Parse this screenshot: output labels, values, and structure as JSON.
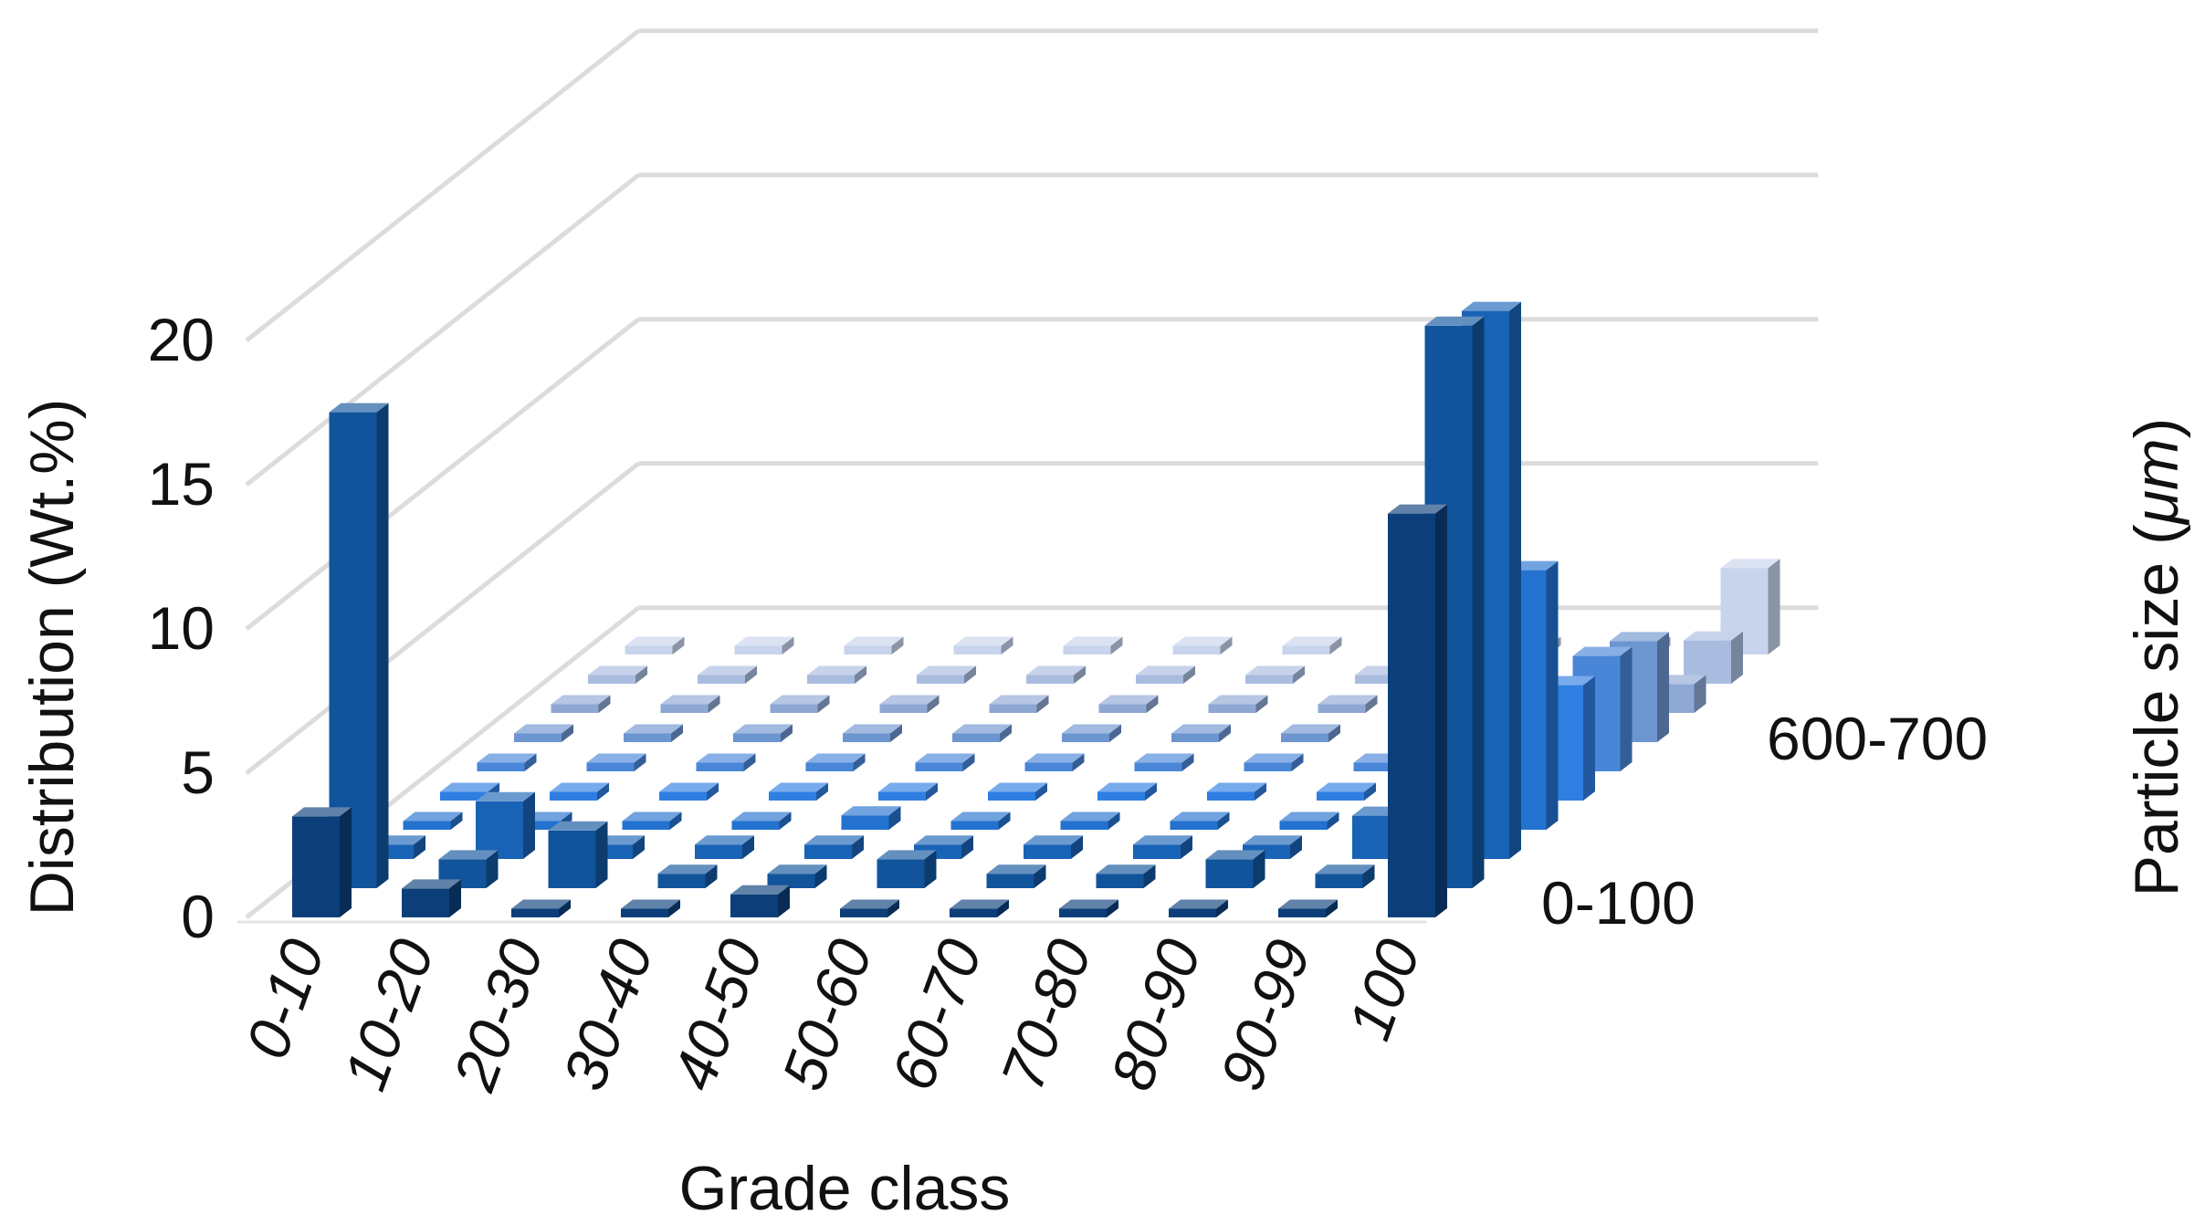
{
  "chart_data": {
    "type": "bar",
    "subtype": "3d-column",
    "title": "",
    "xlabel": "Grade class",
    "ylabel": "Distribution (Wt.%)",
    "zlabel_prefix": "Particle size (",
    "zlabel_unit": "μm",
    "zlabel_suffix": ")",
    "ylim": [
      0,
      20
    ],
    "yticks": [
      "0",
      "5",
      "10",
      "15",
      "20"
    ],
    "categories": [
      "0-10",
      "10-20",
      "20-30",
      "30-40",
      "40-50",
      "50-60",
      "60-70",
      "70-80",
      "80-90",
      "90-99",
      "100"
    ],
    "series_tick_labels": {
      "first": "0-100",
      "last": "600-700"
    },
    "grid": true,
    "series": [
      {
        "values": [
          3.5,
          1.0,
          0.3,
          0.3,
          0.8,
          0.3,
          0.3,
          0.3,
          0.3,
          0.3,
          14.0
        ],
        "color": "#0c3f7a"
      },
      {
        "values": [
          16.5,
          1.0,
          2.0,
          0.5,
          0.5,
          1.0,
          0.5,
          0.5,
          1.0,
          0.5,
          19.5
        ],
        "color": "#11549c"
      },
      {
        "values": [
          0.5,
          2.0,
          0.5,
          0.5,
          0.5,
          0.5,
          0.5,
          0.5,
          0.5,
          1.5,
          19.0
        ],
        "color": "#1963b6"
      },
      {
        "values": [
          0.3,
          0.3,
          0.3,
          0.3,
          0.5,
          0.3,
          0.3,
          0.3,
          0.3,
          0.3,
          9.0
        ],
        "color": "#2372cf"
      },
      {
        "values": [
          0.3,
          0.3,
          0.3,
          0.3,
          0.3,
          0.3,
          0.3,
          0.3,
          0.3,
          0.3,
          4.0
        ],
        "color": "#2f7ee2"
      },
      {
        "values": [
          0.3,
          0.3,
          0.3,
          0.3,
          0.3,
          0.3,
          0.3,
          0.3,
          0.3,
          0.3,
          4.0
        ],
        "color": "#4a86d8"
      },
      {
        "values": [
          0.3,
          0.3,
          0.3,
          0.3,
          0.3,
          0.3,
          0.3,
          0.3,
          0.3,
          0.3,
          3.5
        ],
        "color": "#6d95d0"
      },
      {
        "values": [
          0.3,
          0.3,
          0.3,
          0.3,
          0.3,
          0.3,
          0.3,
          0.3,
          0.3,
          0.3,
          1.0
        ],
        "color": "#8ea8d4"
      },
      {
        "values": [
          0.3,
          0.3,
          0.3,
          0.3,
          0.3,
          0.3,
          0.3,
          0.3,
          0.3,
          0.3,
          1.5
        ],
        "color": "#a9bcdf"
      },
      {
        "values": [
          0.3,
          0.3,
          0.3,
          0.3,
          0.3,
          0.3,
          0.3,
          0.3,
          0.3,
          0.3,
          3.0
        ],
        "color": "#c7d4ec"
      }
    ]
  }
}
